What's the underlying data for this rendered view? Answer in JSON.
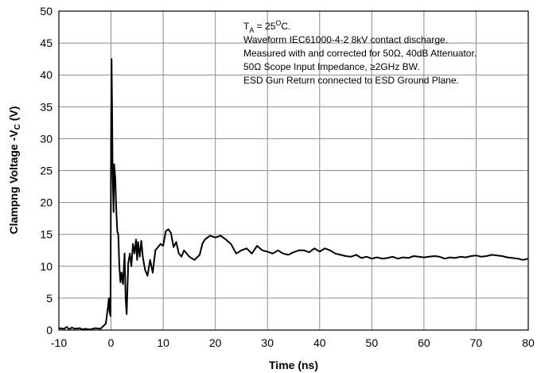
{
  "chart_data": {
    "type": "line",
    "title": "",
    "xlabel": "Time (ns)",
    "ylabel_main": "Clampng Voltage -V",
    "ylabel_sub": "C",
    "ylabel_unit": " (V)",
    "xlim": [
      -10,
      80
    ],
    "ylim": [
      0,
      50
    ],
    "xticks": [
      -10,
      0,
      10,
      20,
      30,
      40,
      50,
      60,
      70,
      80
    ],
    "yticks": [
      0,
      5,
      10,
      15,
      20,
      25,
      30,
      35,
      40,
      45,
      50
    ],
    "grid": true,
    "annotations": {
      "ta_prefix": "T",
      "ta_sub": "A",
      "ta_mid": " = 25",
      "ta_sup": "O",
      "ta_suffix": "C.",
      "lines": [
        "Waveform IEC61000-4-2 8kV contact discharge.",
        "Measured with and corrected for 50Ω, 40dB Attenuator.",
        "50Ω Scope Input Impedance, ≥2GHz BW.",
        "ESD Gun Return connected to ESD Ground Plane."
      ]
    },
    "series": [
      {
        "color": "#000000",
        "x": [
          -10,
          -9,
          -8.5,
          -8,
          -7.5,
          -7,
          -6,
          -5.5,
          -5,
          -4,
          -3,
          -2,
          -1.5,
          -1,
          -0.6,
          -0.4,
          -0.3,
          -0.1,
          0.0,
          0.1,
          0.2,
          0.3,
          0.5,
          0.6,
          0.8,
          1.0,
          1.2,
          1.4,
          1.6,
          1.8,
          2.0,
          2.3,
          2.6,
          2.8,
          3.0,
          3.3,
          3.6,
          3.9,
          4.2,
          4.5,
          4.8,
          5.0,
          5.2,
          5.5,
          5.8,
          6.1,
          6.5,
          7.0,
          7.5,
          8.0,
          8.5,
          9.0,
          9.5,
          10.0,
          10.5,
          11.0,
          11.5,
          12.0,
          12.5,
          13.0,
          13.5,
          14.0,
          15.0,
          16.0,
          17.0,
          17.5,
          18.0,
          19.0,
          20.0,
          21.0,
          22.0,
          23.0,
          24.0,
          25.0,
          26.0,
          27.0,
          28.0,
          29.0,
          30.0,
          31.0,
          32.0,
          33.0,
          34.0,
          35.0,
          36.0,
          37.0,
          38.0,
          39.0,
          40.0,
          41.0,
          42.0,
          43.0,
          44.0,
          45.0,
          46.0,
          47.0,
          48.0,
          49.0,
          50.0,
          51.0,
          52.0,
          53.0,
          54.0,
          55.0,
          56.0,
          57.0,
          58.0,
          59.0,
          60.0,
          61.0,
          62.0,
          63.0,
          64.0,
          65.0,
          66.0,
          67.0,
          68.0,
          69.0,
          70.0,
          71.0,
          72.0,
          73.0,
          74.0,
          75.0,
          76.0,
          77.0,
          78.0,
          79.0,
          80.0
        ],
        "y": [
          0.3,
          0.2,
          0.5,
          0.1,
          0.4,
          0.2,
          0.3,
          0.1,
          0.2,
          0.1,
          0.3,
          0.2,
          0.6,
          1.0,
          3.5,
          5.0,
          3.0,
          2.2,
          30.0,
          42.5,
          35.0,
          25.0,
          18.5,
          26.0,
          24.0,
          19.0,
          15.5,
          15.0,
          10.0,
          7.5,
          9.0,
          7.2,
          12.0,
          5.0,
          2.5,
          10.5,
          12.0,
          10.0,
          13.5,
          12.0,
          14.2,
          11.0,
          13.8,
          11.5,
          14.0,
          11.5,
          9.5,
          8.5,
          11.0,
          9.0,
          12.5,
          13.0,
          13.5,
          13.2,
          15.5,
          15.8,
          15.2,
          13.0,
          13.8,
          12.0,
          11.5,
          12.5,
          11.5,
          11.0,
          11.8,
          13.5,
          14.2,
          14.8,
          14.5,
          14.8,
          14.2,
          13.5,
          12.0,
          12.5,
          12.8,
          12.0,
          13.2,
          12.5,
          12.3,
          12.0,
          12.5,
          12.0,
          11.8,
          12.2,
          12.5,
          12.5,
          12.2,
          12.8,
          12.3,
          12.8,
          12.5,
          12.0,
          11.8,
          11.6,
          11.5,
          11.8,
          11.3,
          11.5,
          11.2,
          11.4,
          11.2,
          11.3,
          11.5,
          11.2,
          11.4,
          11.3,
          11.6,
          11.5,
          11.4,
          11.5,
          11.6,
          11.5,
          11.2,
          11.4,
          11.3,
          11.5,
          11.4,
          11.6,
          11.7,
          11.5,
          11.6,
          11.8,
          11.7,
          11.6,
          11.4,
          11.3,
          11.2,
          11.0,
          11.2
        ]
      }
    ]
  }
}
